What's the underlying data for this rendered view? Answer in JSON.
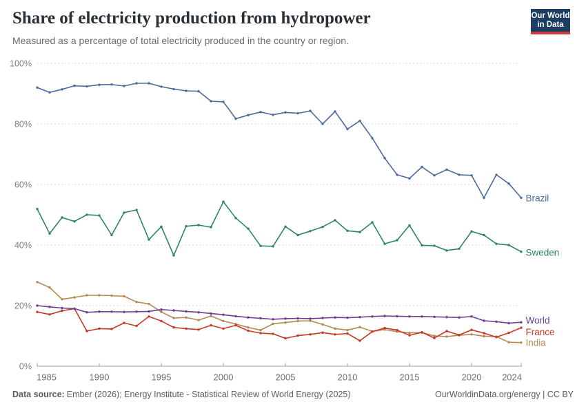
{
  "header": {
    "title": "Share of electricity production from hydropower",
    "subtitle": "Measured as a percentage of total electricity produced in the country or region.",
    "logo": {
      "line1": "Our World",
      "line2": "in Data"
    }
  },
  "footer": {
    "source_label": "Data source:",
    "source_text": "Ember (2026); Energy Institute - Statistical Review of World Energy (2025)",
    "license": "OurWorldinData.org/energy | CC BY"
  },
  "colors": {
    "brazil": "#4c6a9c",
    "sweden": "#2c8465",
    "world": "#6d3e91",
    "france": "#c73725",
    "india": "#b58952",
    "logo_navy": "#1d3d63",
    "logo_red": "#c93c3c",
    "gridline": "#dddddd",
    "axis": "#9b9b9b"
  },
  "chart_data": {
    "type": "line",
    "title": "Share of electricity production from hydropower",
    "xlabel": "",
    "ylabel": "",
    "ylim": [
      0,
      100
    ],
    "grid": "horizontal-dashed",
    "legend_position": "line-end-labels",
    "x_ticks": [
      1985,
      1990,
      1995,
      2000,
      2005,
      2010,
      2015,
      2020,
      2024
    ],
    "y_ticks": [
      0,
      20,
      40,
      60,
      80,
      100
    ],
    "y_tick_labels": [
      "0%",
      "20%",
      "40%",
      "60%",
      "80%",
      "100%"
    ],
    "years": [
      1985,
      1986,
      1987,
      1988,
      1989,
      1990,
      1991,
      1992,
      1993,
      1994,
      1995,
      1996,
      1997,
      1998,
      1999,
      2000,
      2001,
      2002,
      2003,
      2004,
      2005,
      2006,
      2007,
      2008,
      2009,
      2010,
      2011,
      2012,
      2013,
      2014,
      2015,
      2016,
      2017,
      2018,
      2019,
      2020,
      2021,
      2022,
      2023,
      2024
    ],
    "series": [
      {
        "name": "Brazil",
        "color": "#4c6a9c",
        "values": [
          92.0,
          90.4,
          91.4,
          92.6,
          92.4,
          92.9,
          93.0,
          92.5,
          93.4,
          93.4,
          92.3,
          91.5,
          90.9,
          90.8,
          87.5,
          87.3,
          81.7,
          82.9,
          83.9,
          83.0,
          83.8,
          83.5,
          84.3,
          80.0,
          84.1,
          78.3,
          81.0,
          75.3,
          68.7,
          63.2,
          62.0,
          65.8,
          63.0,
          64.9,
          63.2,
          63.0,
          55.6,
          63.2,
          60.3,
          55.6
        ]
      },
      {
        "name": "Sweden",
        "color": "#2c8465",
        "values": [
          51.9,
          43.8,
          49.1,
          47.8,
          50.0,
          49.8,
          43.3,
          50.7,
          51.6,
          41.8,
          46.1,
          36.6,
          46.2,
          46.6,
          45.9,
          54.3,
          48.9,
          45.4,
          39.7,
          39.6,
          46.1,
          43.3,
          44.6,
          46.0,
          48.2,
          44.7,
          44.3,
          47.5,
          40.4,
          41.6,
          46.5,
          39.9,
          39.8,
          38.2,
          38.8,
          44.5,
          43.3,
          40.4,
          40.0,
          37.8
        ]
      },
      {
        "name": "World",
        "color": "#6d3e91",
        "values": [
          20.0,
          19.6,
          19.2,
          19.0,
          17.8,
          18.0,
          18.0,
          17.9,
          18.0,
          18.1,
          18.7,
          18.4,
          18.1,
          17.8,
          17.4,
          17.0,
          16.5,
          16.1,
          15.8,
          15.5,
          15.7,
          15.8,
          15.7,
          15.9,
          16.1,
          16.0,
          16.2,
          16.4,
          16.6,
          16.5,
          16.4,
          16.4,
          16.3,
          16.2,
          16.1,
          16.4,
          15.0,
          14.7,
          14.2,
          14.5
        ]
      },
      {
        "name": "France",
        "color": "#c73725",
        "values": [
          17.9,
          17.1,
          18.3,
          19.0,
          11.6,
          12.4,
          12.3,
          14.3,
          13.3,
          16.4,
          14.9,
          12.8,
          12.4,
          12.1,
          13.5,
          12.4,
          13.5,
          11.7,
          10.9,
          10.7,
          9.2,
          10.1,
          10.5,
          11.1,
          10.5,
          10.8,
          8.4,
          11.4,
          12.6,
          11.9,
          10.2,
          11.2,
          9.3,
          11.6,
          10.3,
          12.0,
          10.9,
          9.6,
          11.0,
          12.7
        ]
      },
      {
        "name": "India",
        "color": "#b58952",
        "values": [
          27.8,
          26.0,
          22.1,
          22.7,
          23.4,
          23.4,
          23.3,
          23.1,
          21.2,
          20.6,
          17.9,
          15.9,
          16.1,
          15.2,
          16.6,
          14.9,
          13.9,
          12.8,
          11.9,
          14.0,
          14.4,
          14.9,
          15.0,
          13.8,
          12.4,
          11.9,
          12.9,
          11.5,
          12.1,
          11.4,
          11.0,
          11.1,
          10.0,
          9.8,
          10.2,
          10.5,
          9.9,
          9.8,
          7.9,
          7.8
        ]
      }
    ]
  }
}
